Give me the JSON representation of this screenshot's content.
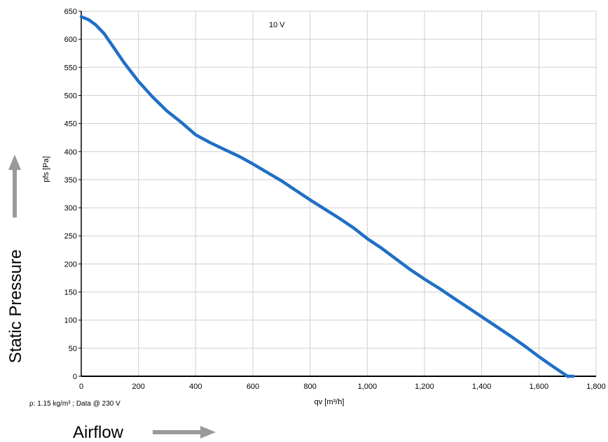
{
  "chart_data": {
    "type": "line",
    "annotation": "10 V",
    "xlabel": "qv [m³/h]",
    "ylabel": "pfs [Pa]",
    "xlim": [
      0,
      1800
    ],
    "ylim": [
      0,
      650
    ],
    "x_ticks": [
      0,
      200,
      400,
      600,
      800,
      1000,
      1200,
      1400,
      1600,
      1800
    ],
    "x_tick_labels": [
      "0",
      "200",
      "400",
      "600",
      "800",
      "1,000",
      "1,200",
      "1,400",
      "1,600",
      "1,800"
    ],
    "y_ticks": [
      0,
      50,
      100,
      150,
      200,
      250,
      300,
      350,
      400,
      450,
      500,
      550,
      600,
      650
    ],
    "grid": true,
    "series": [
      {
        "color": "#1f6fc5",
        "x": [
          0,
          25,
          50,
          80,
          110,
          150,
          200,
          250,
          300,
          350,
          400,
          450,
          500,
          550,
          600,
          650,
          700,
          750,
          800,
          850,
          900,
          950,
          1000,
          1050,
          1100,
          1150,
          1200,
          1250,
          1300,
          1350,
          1400,
          1450,
          1500,
          1550,
          1600,
          1650,
          1700,
          1720
        ],
        "y": [
          640,
          635,
          626,
          610,
          588,
          558,
          525,
          497,
          472,
          452,
          430,
          416,
          404,
          392,
          378,
          363,
          348,
          331,
          314,
          298,
          282,
          265,
          245,
          228,
          209,
          190,
          173,
          157,
          140,
          123,
          106,
          89,
          72,
          54,
          35,
          17,
          0,
          0
        ]
      }
    ]
  },
  "footnote": "ρ: 1.15 kg/m³ ; Data @ 230 V",
  "side_label": "Static Pressure",
  "bottom_label": "Airflow",
  "colors": {
    "curve": "#1f6fc5",
    "grid": "#cfcfcf",
    "arrow": "#9a9a9a"
  }
}
